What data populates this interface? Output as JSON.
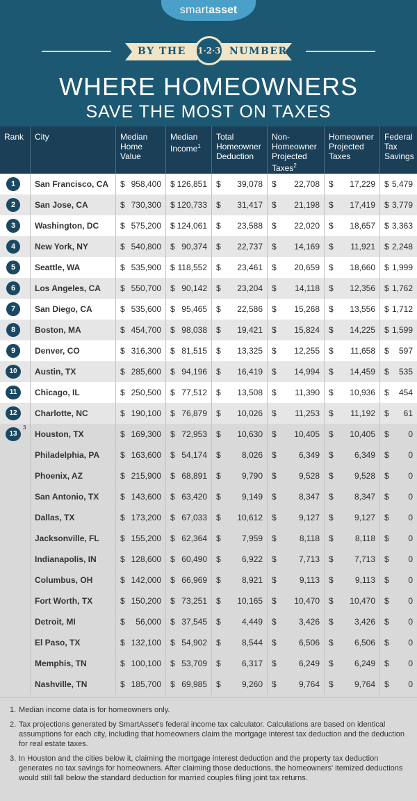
{
  "header": {
    "brand_a": "smart",
    "brand_b": "asset",
    "by_the": "BY THE",
    "badge": "1·2·3",
    "numbers": "NUMBERS",
    "title_line1": "WHERE HOMEOWNERS",
    "title_line2": "SAVE THE MOST ON TAXES"
  },
  "columns": [
    {
      "label": "Rank"
    },
    {
      "label": "City"
    },
    {
      "label": "Median Home Value"
    },
    {
      "label": "Median Income",
      "sup": "1"
    },
    {
      "label": "Total Homeowner Deduction"
    },
    {
      "label": "Non-Homeowner Projected Taxes",
      "sup": "2"
    },
    {
      "label": "Homeowner Projected Taxes"
    },
    {
      "label": "Federal Tax Savings"
    }
  ],
  "chart_data": {
    "type": "table",
    "title": "Where Homeowners Save the Most on Taxes",
    "columns": [
      "Rank",
      "City",
      "Median Home Value",
      "Median Income",
      "Total Homeowner Deduction",
      "Non-Homeowner Projected Taxes",
      "Homeowner Projected Taxes",
      "Federal Tax Savings"
    ],
    "rows": [
      {
        "rank": "1",
        "city": "San Francisco, CA",
        "home_value": "958,400",
        "income": "126,851",
        "deduction": "39,078",
        "non_owner_tax": "22,708",
        "owner_tax": "17,229",
        "savings": "5,479"
      },
      {
        "rank": "2",
        "city": "San Jose, CA",
        "home_value": "730,300",
        "income": "120,733",
        "deduction": "31,417",
        "non_owner_tax": "21,198",
        "owner_tax": "17,419",
        "savings": "3,779"
      },
      {
        "rank": "3",
        "city": "Washington, DC",
        "home_value": "575,200",
        "income": "124,061",
        "deduction": "23,588",
        "non_owner_tax": "22,020",
        "owner_tax": "18,657",
        "savings": "3,363"
      },
      {
        "rank": "4",
        "city": "New York, NY",
        "home_value": "540,800",
        "income": "90,374",
        "deduction": "22,737",
        "non_owner_tax": "14,169",
        "owner_tax": "11,921",
        "savings": "2,248"
      },
      {
        "rank": "5",
        "city": "Seattle, WA",
        "home_value": "535,900",
        "income": "118,552",
        "deduction": "23,461",
        "non_owner_tax": "20,659",
        "owner_tax": "18,660",
        "savings": "1,999"
      },
      {
        "rank": "6",
        "city": "Los Angeles, CA",
        "home_value": "550,700",
        "income": "90,142",
        "deduction": "23,204",
        "non_owner_tax": "14,118",
        "owner_tax": "12,356",
        "savings": "1,762"
      },
      {
        "rank": "7",
        "city": "San Diego, CA",
        "home_value": "535,600",
        "income": "95,465",
        "deduction": "22,586",
        "non_owner_tax": "15,268",
        "owner_tax": "13,556",
        "savings": "1,712"
      },
      {
        "rank": "8",
        "city": "Boston, MA",
        "home_value": "454,700",
        "income": "98,038",
        "deduction": "19,421",
        "non_owner_tax": "15,824",
        "owner_tax": "14,225",
        "savings": "1,599"
      },
      {
        "rank": "9",
        "city": "Denver, CO",
        "home_value": "316,300",
        "income": "81,515",
        "deduction": "13,325",
        "non_owner_tax": "12,255",
        "owner_tax": "11,658",
        "savings": "597"
      },
      {
        "rank": "10",
        "city": "Austin, TX",
        "home_value": "285,600",
        "income": "94,196",
        "deduction": "16,419",
        "non_owner_tax": "14,994",
        "owner_tax": "14,459",
        "savings": "535"
      },
      {
        "rank": "11",
        "city": "Chicago, IL",
        "home_value": "250,500",
        "income": "77,512",
        "deduction": "13,508",
        "non_owner_tax": "11,390",
        "owner_tax": "10,936",
        "savings": "454"
      },
      {
        "rank": "12",
        "city": "Charlotte, NC",
        "home_value": "190,100",
        "income": "76,879",
        "deduction": "10,026",
        "non_owner_tax": "11,253",
        "owner_tax": "11,192",
        "savings": "61"
      },
      {
        "rank": "13",
        "rank_sup": "3",
        "city": "Houston, TX",
        "home_value": "169,300",
        "income": "72,953",
        "deduction": "10,630",
        "non_owner_tax": "10,405",
        "owner_tax": "10,405",
        "savings": "0"
      },
      {
        "rank": "",
        "city": "Philadelphia, PA",
        "home_value": "163,600",
        "income": "54,174",
        "deduction": "8,026",
        "non_owner_tax": "6,349",
        "owner_tax": "6,349",
        "savings": "0"
      },
      {
        "rank": "",
        "city": "Phoenix, AZ",
        "home_value": "215,900",
        "income": "68,891",
        "deduction": "9,790",
        "non_owner_tax": "9,528",
        "owner_tax": "9,528",
        "savings": "0"
      },
      {
        "rank": "",
        "city": "San Antonio, TX",
        "home_value": "143,600",
        "income": "63,420",
        "deduction": "9,149",
        "non_owner_tax": "8,347",
        "owner_tax": "8,347",
        "savings": "0"
      },
      {
        "rank": "",
        "city": "Dallas, TX",
        "home_value": "173,200",
        "income": "67,033",
        "deduction": "10,612",
        "non_owner_tax": "9,127",
        "owner_tax": "9,127",
        "savings": "0"
      },
      {
        "rank": "",
        "city": "Jacksonville, FL",
        "home_value": "155,200",
        "income": "62,364",
        "deduction": "7,959",
        "non_owner_tax": "8,118",
        "owner_tax": "8,118",
        "savings": "0"
      },
      {
        "rank": "",
        "city": "Indianapolis, IN",
        "home_value": "128,600",
        "income": "60,490",
        "deduction": "6,922",
        "non_owner_tax": "7,713",
        "owner_tax": "7,713",
        "savings": "0"
      },
      {
        "rank": "",
        "city": "Columbus, OH",
        "home_value": "142,000",
        "income": "66,969",
        "deduction": "8,921",
        "non_owner_tax": "9,113",
        "owner_tax": "9,113",
        "savings": "0"
      },
      {
        "rank": "",
        "city": "Fort Worth, TX",
        "home_value": "150,200",
        "income": "73,251",
        "deduction": "10,165",
        "non_owner_tax": "10,470",
        "owner_tax": "10,470",
        "savings": "0"
      },
      {
        "rank": "",
        "city": "Detroit, MI",
        "home_value": "56,000",
        "income": "37,545",
        "deduction": "4,449",
        "non_owner_tax": "3,426",
        "owner_tax": "3,426",
        "savings": "0"
      },
      {
        "rank": "",
        "city": "El Paso, TX",
        "home_value": "132,100",
        "income": "54,902",
        "deduction": "8,544",
        "non_owner_tax": "6,506",
        "owner_tax": "6,506",
        "savings": "0"
      },
      {
        "rank": "",
        "city": "Memphis, TN",
        "home_value": "100,100",
        "income": "53,709",
        "deduction": "6,317",
        "non_owner_tax": "6,249",
        "owner_tax": "6,249",
        "savings": "0"
      },
      {
        "rank": "",
        "city": "Nashville, TN",
        "home_value": "185,700",
        "income": "69,985",
        "deduction": "9,260",
        "non_owner_tax": "9,764",
        "owner_tax": "9,764",
        "savings": "0"
      }
    ]
  },
  "footnotes": [
    {
      "n": "1.",
      "text": "Median income data is for homeowners only."
    },
    {
      "n": "2.",
      "text": "Tax projections generated by SmartAsset's federal income tax calculator. Calculations are based on identical assumptions for each city, including that homeowners claim the mortgage interest tax deduction and the deduction for real estate taxes."
    },
    {
      "n": "3.",
      "text": "In Houston and the cities below it, claiming the mortgage interest deduction and the property tax deduction generates no tax savings for homeowners. After claiming those deductions, the homeowners' itemized deductions would still fall below the standard deduction for married couples filing joint tax returns."
    }
  ],
  "colors": {
    "header_bg": "#1d5873",
    "table_header_bg": "#1a3f57",
    "rank_circle": "#1a4862",
    "accent_cream": "#f0e5c6",
    "logo_blue": "#4aa0c8"
  }
}
